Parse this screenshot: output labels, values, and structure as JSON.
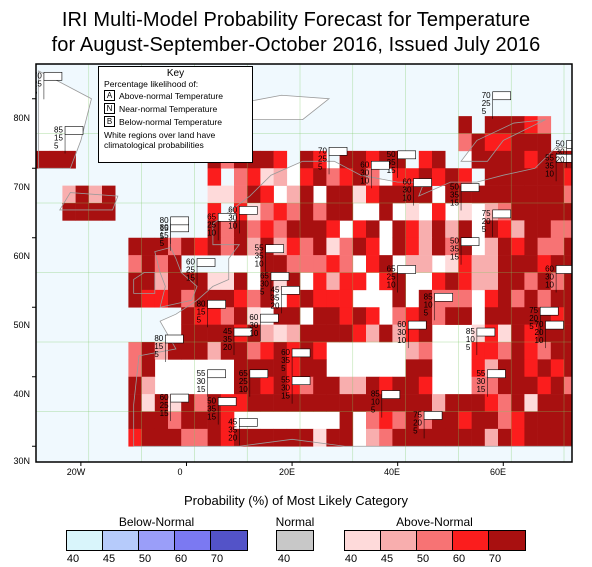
{
  "title_line1": "IRI Multi-Model Probability Forecast for Temperature",
  "title_line2": "for August-September-October 2016, Issued July 2016",
  "map": {
    "lat_labels": [
      "80N",
      "70N",
      "60N",
      "50N",
      "40N",
      "30N"
    ],
    "lon_labels": [
      "20W",
      "0",
      "20E",
      "40E",
      "60E"
    ],
    "ocean_color": "#f0f9fe",
    "land_color": "#ffffff",
    "coast_color": "#9a9a9a",
    "grid_line_color": "#7bc862"
  },
  "key": {
    "title": "Key",
    "subtitle": "Percentage likelihood of:",
    "rows": [
      {
        "letter": "A",
        "text": "Above-normal Temperature"
      },
      {
        "letter": "N",
        "text": "Near-normal Temperature"
      },
      {
        "letter": "B",
        "text": "Below-normal Temperature"
      }
    ],
    "note_line1": "White regions over land have",
    "note_line2": "climatological probabilities"
  },
  "box_labels": [
    {
      "a": "70",
      "n": "25",
      "b": "5"
    },
    {
      "a": "70",
      "n": "25",
      "b": "5"
    },
    {
      "a": "85",
      "n": "15",
      "b": "5"
    },
    {
      "a": "80",
      "n": "15",
      "b": "5"
    },
    {
      "a": "70",
      "n": "25",
      "b": "5"
    },
    {
      "a": "50",
      "n": "35",
      "b": "15"
    },
    {
      "a": "60",
      "n": "30",
      "b": "10"
    },
    {
      "a": "60",
      "n": "30",
      "b": "10"
    },
    {
      "a": "50",
      "n": "35",
      "b": "15"
    },
    {
      "a": "55",
      "n": "35",
      "b": "10"
    },
    {
      "a": "50",
      "n": "30",
      "b": "20"
    },
    {
      "a": "80",
      "n": "15",
      "b": "5"
    },
    {
      "a": "65",
      "n": "25",
      "b": "10"
    },
    {
      "a": "60",
      "n": "30",
      "b": "10"
    },
    {
      "a": "60",
      "n": "25",
      "b": "15"
    },
    {
      "a": "65",
      "n": "30",
      "b": "5"
    },
    {
      "a": "85",
      "n": "10",
      "b": "5"
    },
    {
      "a": "55",
      "n": "35",
      "b": "10"
    },
    {
      "a": "45",
      "n": "35",
      "b": "20"
    },
    {
      "a": "75",
      "n": "20",
      "b": "5"
    },
    {
      "a": "50",
      "n": "35",
      "b": "15"
    },
    {
      "a": "80",
      "n": "15",
      "b": "5"
    },
    {
      "a": "45",
      "n": "35",
      "b": "20"
    },
    {
      "a": "85",
      "n": "10",
      "b": "5"
    },
    {
      "a": "75",
      "n": "20",
      "b": "5"
    },
    {
      "a": "65",
      "n": "25",
      "b": "10"
    },
    {
      "a": "60",
      "n": "30",
      "b": "10"
    },
    {
      "a": "70",
      "n": "20",
      "b": "10"
    },
    {
      "a": "60",
      "n": "30",
      "b": "10"
    },
    {
      "a": "55",
      "n": "30",
      "b": "15"
    },
    {
      "a": "65",
      "n": "25",
      "b": "10"
    },
    {
      "a": "55",
      "n": "30",
      "b": "15"
    },
    {
      "a": "60",
      "n": "35",
      "b": "5"
    },
    {
      "a": "60",
      "n": "30",
      "b": "10"
    },
    {
      "a": "50",
      "n": "35",
      "b": "15"
    },
    {
      "a": "45",
      "n": "35",
      "b": "20"
    },
    {
      "a": "80",
      "n": "15",
      "b": "5"
    },
    {
      "a": "85",
      "n": "10",
      "b": "5"
    },
    {
      "a": "75",
      "n": "20",
      "b": "5"
    },
    {
      "a": "60",
      "n": "25",
      "b": "15"
    },
    {
      "a": "55",
      "n": "30",
      "b": "15"
    }
  ],
  "legend": {
    "title": "Probability (%) of Most Likely Category",
    "below": {
      "label": "Below-Normal",
      "colors": [
        "#d9f5fb",
        "#b6cbfb",
        "#9a9ef9",
        "#7b79f2",
        "#5353c8"
      ],
      "ticks": [
        "40",
        "45",
        "50",
        "60",
        "70"
      ]
    },
    "normal": {
      "label": "Normal",
      "colors": [
        "#c8c8c8"
      ],
      "ticks": [
        "40"
      ]
    },
    "above": {
      "label": "Above-Normal",
      "colors": [
        "#fedada",
        "#f8aeae",
        "#f77374",
        "#fb1d1d",
        "#a81010"
      ],
      "ticks": [
        "40",
        "45",
        "50",
        "60",
        "70"
      ]
    }
  }
}
